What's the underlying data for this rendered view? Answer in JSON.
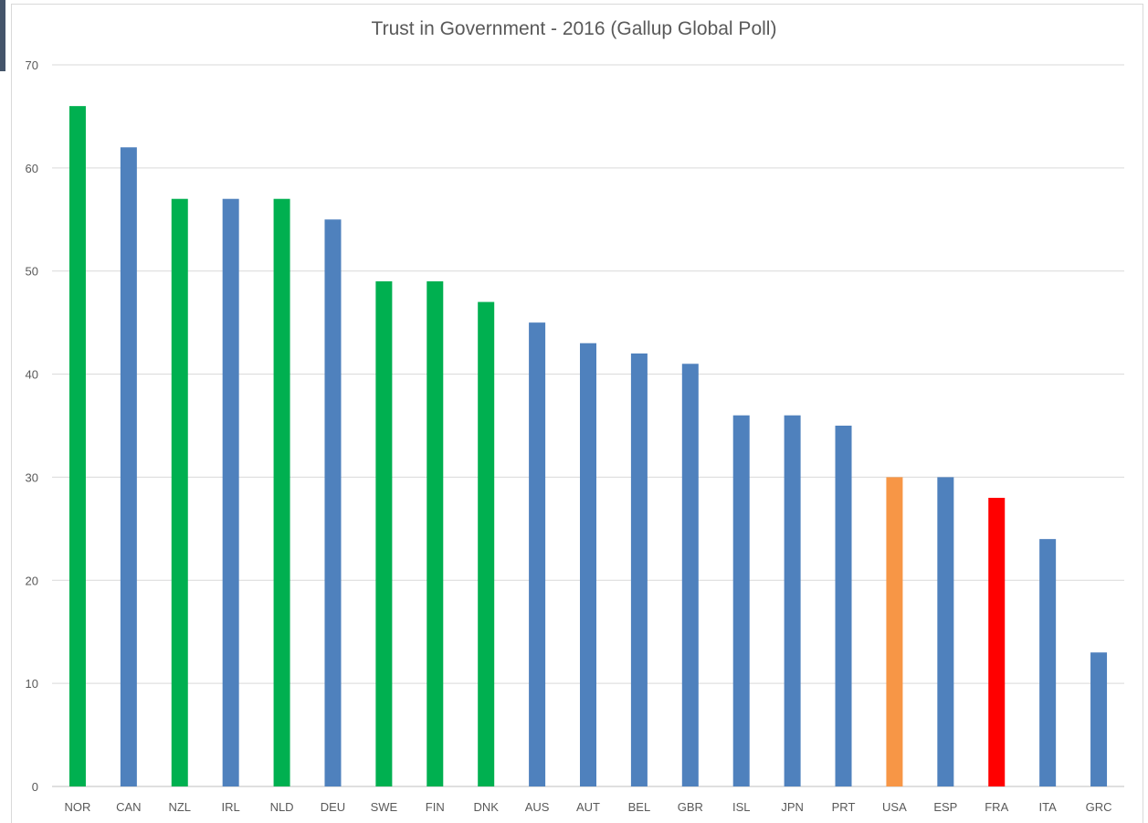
{
  "chart_data": {
    "type": "bar",
    "title": "Trust in Government - 2016 (Gallup Global Poll)",
    "xlabel": "",
    "ylabel": "",
    "ylim": [
      0,
      70
    ],
    "yticks": [
      0,
      10,
      20,
      30,
      40,
      50,
      60,
      70
    ],
    "grid": true,
    "legend": "none",
    "categories": [
      "NOR",
      "CAN",
      "NZL",
      "IRL",
      "NLD",
      "DEU",
      "SWE",
      "FIN",
      "DNK",
      "AUS",
      "AUT",
      "BEL",
      "GBR",
      "ISL",
      "JPN",
      "PRT",
      "USA",
      "ESP",
      "FRA",
      "ITA",
      "GRC"
    ],
    "values": [
      66,
      62,
      57,
      57,
      57,
      55,
      49,
      49,
      47,
      45,
      43,
      42,
      41,
      36,
      36,
      35,
      30,
      30,
      28,
      24,
      13
    ],
    "bar_colors": [
      "#00b050",
      "#4f81bd",
      "#00b050",
      "#4f81bd",
      "#00b050",
      "#4f81bd",
      "#00b050",
      "#00b050",
      "#00b050",
      "#4f81bd",
      "#4f81bd",
      "#4f81bd",
      "#4f81bd",
      "#4f81bd",
      "#4f81bd",
      "#4f81bd",
      "#f79646",
      "#4f81bd",
      "#ff0000",
      "#4f81bd",
      "#4f81bd"
    ]
  }
}
